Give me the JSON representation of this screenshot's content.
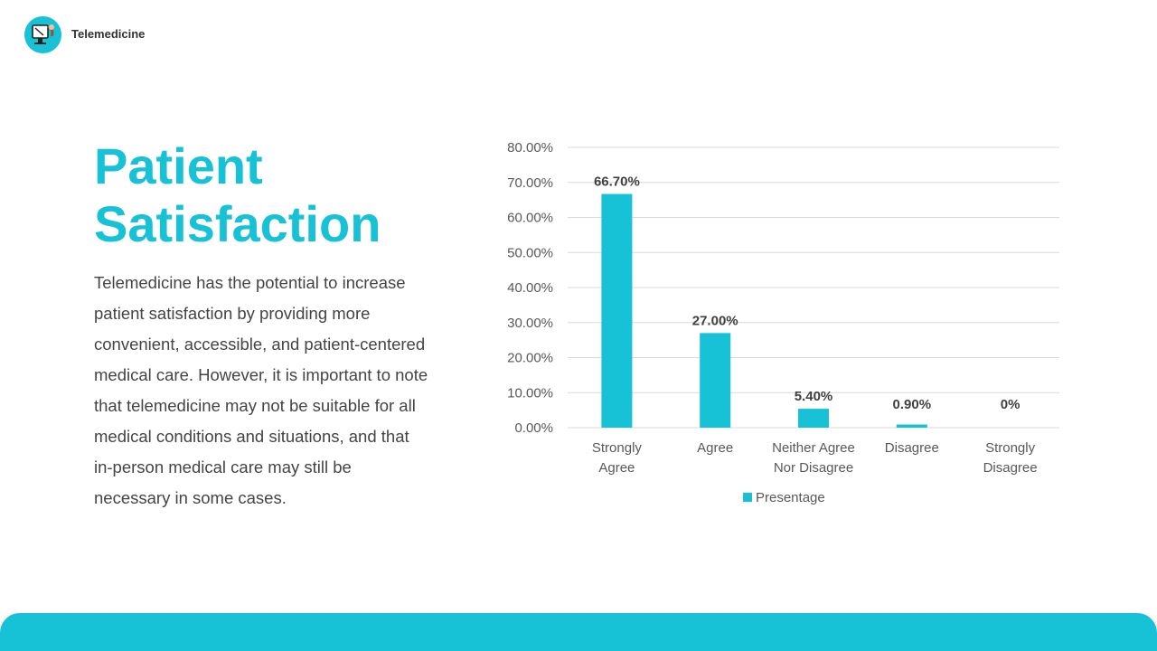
{
  "header": {
    "brand": "Telemedicine",
    "logo_icon": "telemedicine-monitor-icon"
  },
  "main": {
    "title_line1": "Patient",
    "title_line2": "Satisfaction",
    "body": "Telemedicine has the potential to increase patient satisfaction by providing more convenient, accessible, and patient-centered medical care. However, it is important to note that telemedicine may not be suitable for all medical conditions and situations, and that in-person medical care may still be necessary in some cases."
  },
  "colors": {
    "accent": "#17c1d6",
    "text": "#444444",
    "grid": "#d9d9d9"
  },
  "chart_data": {
    "type": "bar",
    "categories": [
      [
        "Strongly",
        "Agree"
      ],
      [
        "Agree"
      ],
      [
        "Neither Agree",
        "Nor Disagree"
      ],
      [
        "Disagree"
      ],
      [
        "Strongly",
        "Disagree"
      ]
    ],
    "series": [
      {
        "name": "Presentage",
        "values": [
          66.7,
          27.0,
          5.4,
          0.9,
          0
        ],
        "labels": [
          "66.70%",
          "27.00%",
          "5.40%",
          "0.90%",
          "0%"
        ]
      }
    ],
    "yticks": [
      "0.00%",
      "10.00%",
      "20.00%",
      "30.00%",
      "40.00%",
      "50.00%",
      "60.00%",
      "70.00%",
      "80.00%"
    ],
    "ylim": [
      0,
      80
    ],
    "grid": true,
    "legend_position": "bottom"
  }
}
